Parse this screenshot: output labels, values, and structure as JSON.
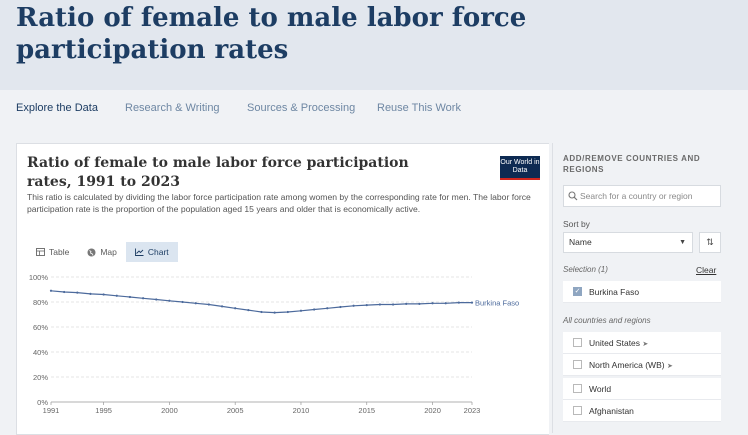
{
  "page": {
    "title": "Ratio of female to male labor force participation rates"
  },
  "nav": {
    "items": [
      "Explore the Data",
      "Research & Writing",
      "Sources & Processing",
      "Reuse This Work"
    ]
  },
  "chart_card": {
    "title": "Ratio of female to male labor force participation rates, 1991 to 2023",
    "subtitle": "This ratio is calculated by dividing the labor force participation rate among women by the corresponding rate for men. The labor force participation rate is the proportion of the population aged 15 years and older that is economically active.",
    "logo_text": "Our World in Data",
    "tabs": [
      {
        "label": "Table",
        "icon": "table-icon"
      },
      {
        "label": "Map",
        "icon": "globe-icon"
      },
      {
        "label": "Chart",
        "icon": "line-chart-icon"
      }
    ],
    "active_tab": "Chart"
  },
  "chart_data": {
    "type": "line",
    "title": "Ratio of female to male labor force participation rates, 1991 to 2023",
    "xlabel": "",
    "ylabel": "",
    "x_ticks": [
      "1991",
      "1995",
      "2000",
      "2005",
      "2010",
      "2015",
      "2020",
      "2023"
    ],
    "y_ticks": [
      "0%",
      "20%",
      "40%",
      "60%",
      "80%",
      "100%"
    ],
    "ylim": [
      0,
      100
    ],
    "xlim": [
      1991,
      2023
    ],
    "grid": true,
    "series": [
      {
        "name": "Burkina Faso",
        "color": "#4c6a9c",
        "x": [
          1991,
          1992,
          1993,
          1994,
          1995,
          1996,
          1997,
          1998,
          1999,
          2000,
          2001,
          2002,
          2003,
          2004,
          2005,
          2006,
          2007,
          2008,
          2009,
          2010,
          2011,
          2012,
          2013,
          2014,
          2015,
          2016,
          2017,
          2018,
          2019,
          2020,
          2021,
          2022,
          2023
        ],
        "y": [
          89,
          88,
          87.5,
          86.5,
          86,
          85,
          84,
          83,
          82,
          81,
          80,
          79,
          78,
          76.5,
          75,
          73.5,
          72,
          71.5,
          72,
          73,
          74,
          75,
          76,
          77,
          77.5,
          78,
          78,
          78.5,
          78.5,
          79,
          79,
          79.5,
          79.5
        ]
      }
    ]
  },
  "sidebar": {
    "heading": "ADD/REMOVE COUNTRIES AND REGIONS",
    "search_placeholder": "Search for a country or region",
    "sort_label": "Sort by",
    "sort_value": "Name",
    "selection_label": "Selection (1)",
    "clear_label": "Clear",
    "selected": [
      {
        "label": "Burkina Faso",
        "checked": true
      }
    ],
    "all_label": "All countries and regions",
    "countries": [
      {
        "label": "United States",
        "pinned": true
      },
      {
        "label": "North America (WB)",
        "pinned": true
      },
      {
        "label": "World",
        "pinned": false
      },
      {
        "label": "Afghanistan",
        "pinned": false
      }
    ]
  }
}
